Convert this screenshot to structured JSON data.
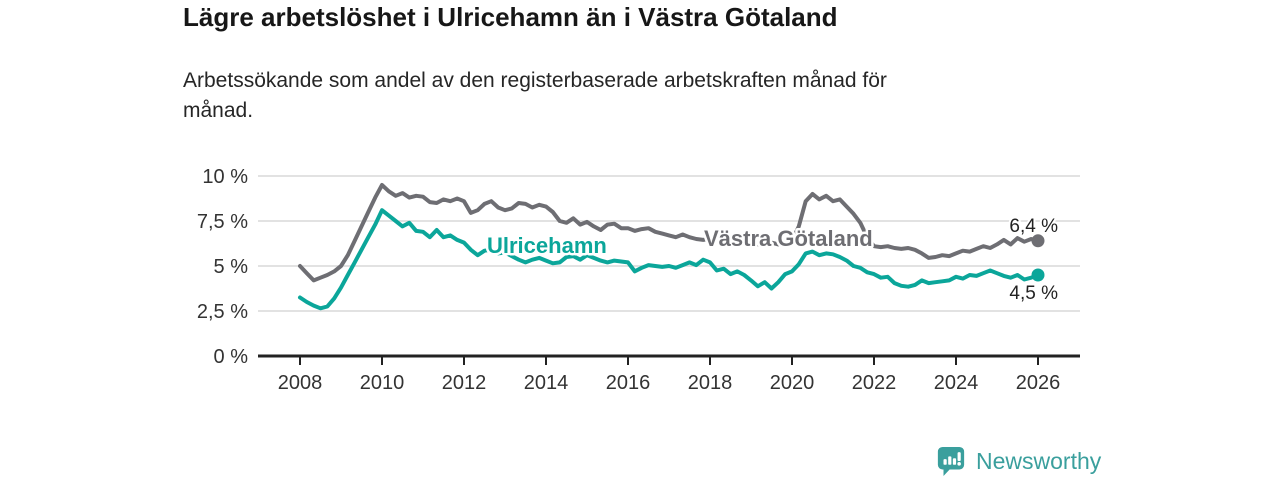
{
  "header": {
    "note": ""
  },
  "footer": {
    "brand": "Newsworthy",
    "brand_color": "#3a9f9d"
  },
  "chart_data": {
    "type": "line",
    "title": "Lägre arbetslöshet i Ulricehamn än i Västra Götaland",
    "subtitle_lines": [
      "Arbetssökande som andel av den registerbaserade arbetskraften månad för",
      "månad."
    ],
    "x_start": 2008,
    "x_end": 2026,
    "points_per_year": 6,
    "ylim": [
      0,
      10
    ],
    "grid": true,
    "grid_color": "#d9d9d9",
    "axis_color": "#222222",
    "tick_label_color": "#333333",
    "yticks": [
      {
        "v": 10,
        "label": "10 %"
      },
      {
        "v": 7.5,
        "label": "7,5 %"
      },
      {
        "v": 5,
        "label": "5 %"
      },
      {
        "v": 2.5,
        "label": "2,5 %"
      },
      {
        "v": 0,
        "label": "0 %"
      }
    ],
    "xticks": [
      {
        "v": 2008,
        "label": "2008"
      },
      {
        "v": 2010,
        "label": "2010"
      },
      {
        "v": 2012,
        "label": "2012"
      },
      {
        "v": 2014,
        "label": "2014"
      },
      {
        "v": 2016,
        "label": "2016"
      },
      {
        "v": 2018,
        "label": "2018"
      },
      {
        "v": 2020,
        "label": "2020"
      },
      {
        "v": 2022,
        "label": "2022"
      },
      {
        "v": 2024,
        "label": "2024"
      },
      {
        "v": 2026,
        "label": "2026"
      }
    ],
    "series": [
      {
        "name": "Västra Götaland",
        "color": "#6e6e73",
        "end_value": 6.4,
        "end_label": "6,4 %",
        "values": [
          5.0,
          4.6,
          4.2,
          4.35,
          4.5,
          4.7,
          5.0,
          5.6,
          6.4,
          7.2,
          8.0,
          8.8,
          9.5,
          9.15,
          8.9,
          9.05,
          8.8,
          8.9,
          8.85,
          8.55,
          8.5,
          8.7,
          8.6,
          8.75,
          8.6,
          7.95,
          8.1,
          8.45,
          8.6,
          8.25,
          8.1,
          8.2,
          8.5,
          8.45,
          8.25,
          8.4,
          8.3,
          8.0,
          7.5,
          7.4,
          7.65,
          7.3,
          7.45,
          7.2,
          7.0,
          7.3,
          7.35,
          7.1,
          7.1,
          6.95,
          7.05,
          7.1,
          6.9,
          6.8,
          6.7,
          6.6,
          6.75,
          6.6,
          6.5,
          6.45,
          6.5,
          6.6,
          6.45,
          6.5,
          6.35,
          6.3,
          6.3,
          6.2,
          6.35,
          6.3,
          6.2,
          6.35,
          6.4,
          7.2,
          8.6,
          9.0,
          8.7,
          8.9,
          8.6,
          8.7,
          8.3,
          7.9,
          7.4,
          6.6,
          6.1,
          6.05,
          6.1,
          6.0,
          5.95,
          6.0,
          5.9,
          5.7,
          5.45,
          5.5,
          5.6,
          5.55,
          5.7,
          5.85,
          5.8,
          5.95,
          6.1,
          6.0,
          6.2,
          6.45,
          6.2,
          6.55,
          6.35,
          6.5,
          6.4
        ]
      },
      {
        "name": "Ulricehamn",
        "color": "#0ba69a",
        "end_value": 4.5,
        "end_label": "4,5 %",
        "values": [
          3.25,
          3.0,
          2.8,
          2.65,
          2.75,
          3.2,
          3.8,
          4.5,
          5.2,
          5.9,
          6.6,
          7.3,
          8.1,
          7.8,
          7.5,
          7.2,
          7.4,
          6.95,
          6.9,
          6.6,
          7.0,
          6.6,
          6.7,
          6.45,
          6.3,
          5.9,
          5.6,
          5.85,
          5.9,
          5.7,
          5.75,
          5.55,
          5.35,
          5.2,
          5.35,
          5.45,
          5.3,
          5.15,
          5.2,
          5.5,
          5.55,
          5.35,
          5.6,
          5.45,
          5.3,
          5.2,
          5.3,
          5.25,
          5.2,
          4.7,
          4.9,
          5.05,
          5.0,
          4.95,
          5.0,
          4.9,
          5.05,
          5.2,
          5.05,
          5.35,
          5.2,
          4.75,
          4.85,
          4.55,
          4.7,
          4.5,
          4.2,
          3.87,
          4.1,
          3.75,
          4.1,
          4.55,
          4.7,
          5.1,
          5.7,
          5.8,
          5.6,
          5.7,
          5.65,
          5.5,
          5.3,
          5.0,
          4.9,
          4.65,
          4.55,
          4.35,
          4.4,
          4.05,
          3.9,
          3.85,
          3.95,
          4.2,
          4.05,
          4.1,
          4.15,
          4.2,
          4.4,
          4.3,
          4.5,
          4.45,
          4.6,
          4.75,
          4.6,
          4.45,
          4.35,
          4.5,
          4.25,
          4.35,
          4.5
        ]
      }
    ],
    "legend_position": "inline-labels"
  }
}
